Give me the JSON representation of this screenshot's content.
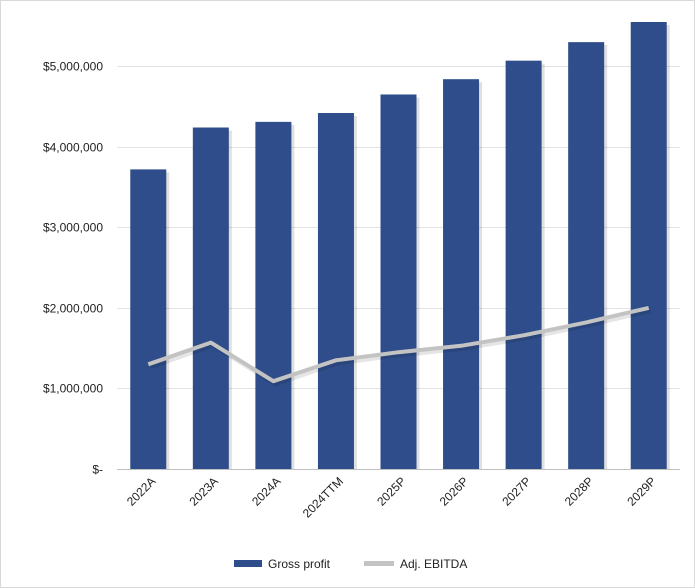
{
  "chart_data": {
    "type": "bar",
    "categories": [
      "2022A",
      "2023A",
      "2024A",
      "2024TTM",
      "2025P",
      "2026P",
      "2027P",
      "2028P",
      "2029P"
    ],
    "series": [
      {
        "name": "Gross profit",
        "type": "bar",
        "color": "#2e4d8a",
        "values": [
          3720000,
          4240000,
          4310000,
          4420000,
          4650000,
          4840000,
          5070000,
          5300000,
          5550000
        ]
      },
      {
        "name": "Adj. EBITDA",
        "type": "line",
        "color": "#c3c3c3",
        "values": [
          1300000,
          1570000,
          1090000,
          1350000,
          1450000,
          1530000,
          1660000,
          1820000,
          2000000
        ]
      }
    ],
    "yticks": [
      {
        "value": 0,
        "label": "$-"
      },
      {
        "value": 1000000,
        "label": "$1,000,000"
      },
      {
        "value": 2000000,
        "label": "$2,000,000"
      },
      {
        "value": 3000000,
        "label": "$3,000,000"
      },
      {
        "value": 4000000,
        "label": "$4,000,000"
      },
      {
        "value": 5000000,
        "label": "$5,000,000"
      }
    ],
    "ylim": [
      0,
      5550000
    ],
    "grid": true,
    "legend_position": "bottom"
  }
}
